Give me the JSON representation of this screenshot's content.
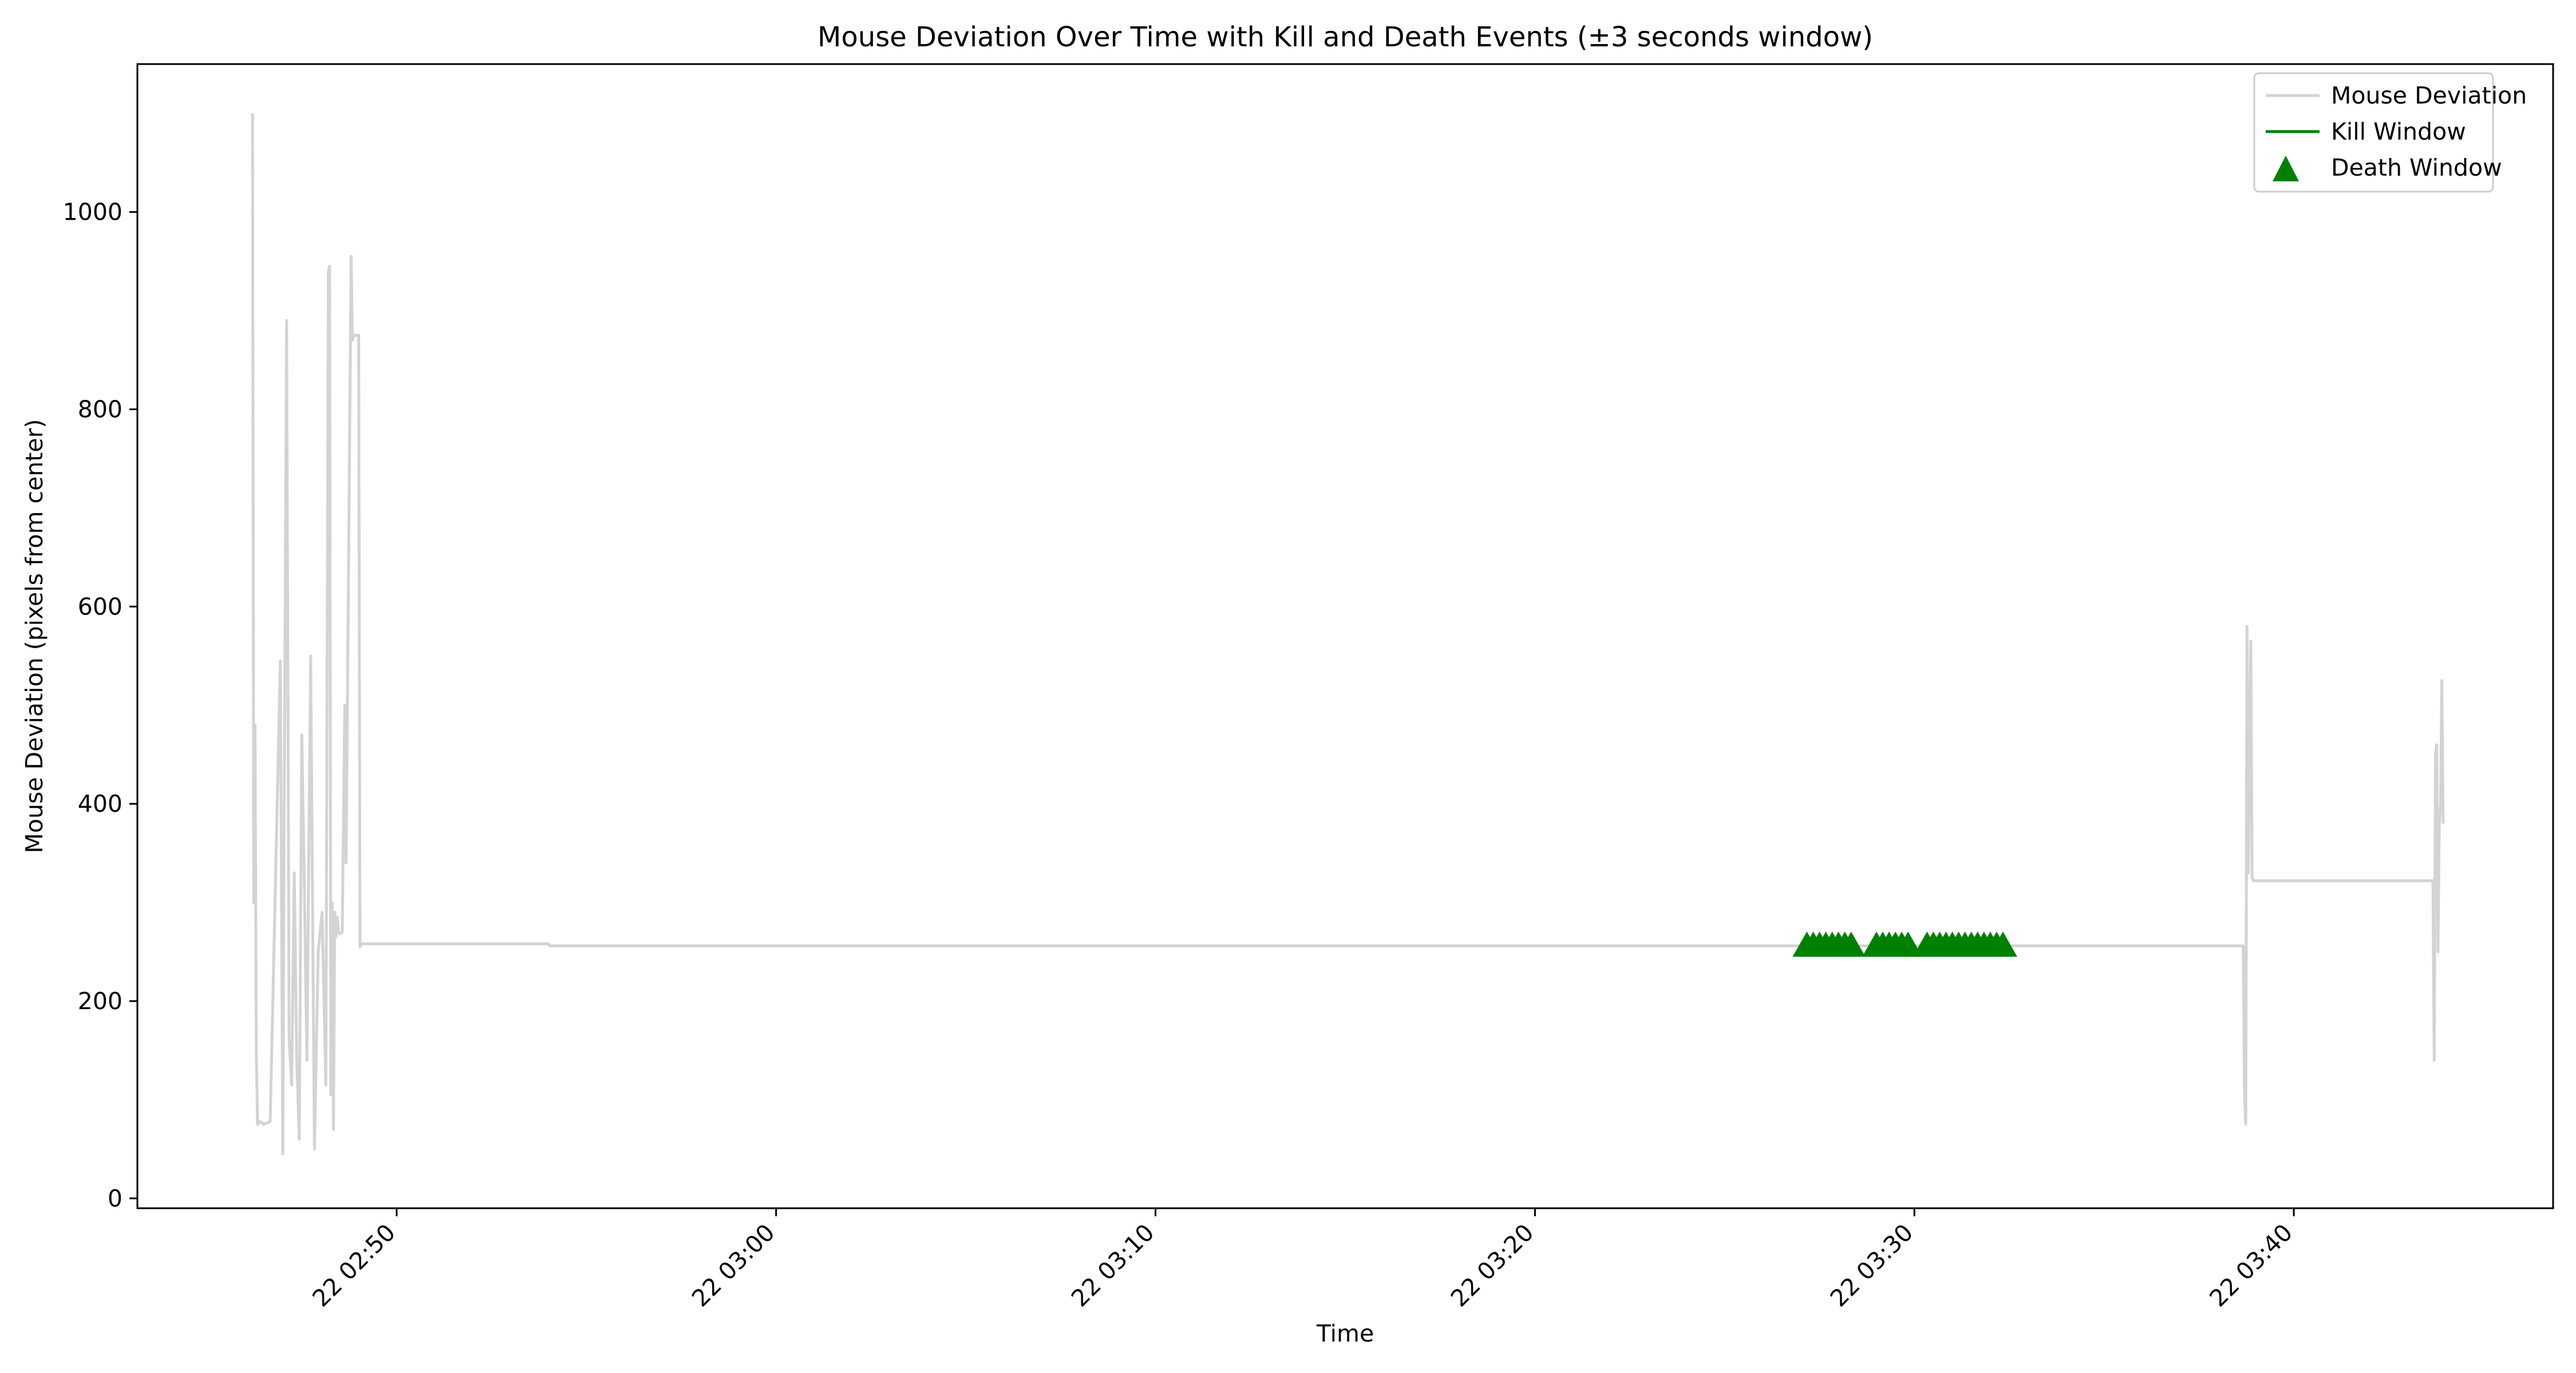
{
  "chart_data": {
    "type": "line",
    "title": "Mouse Deviation Over Time with Kill and Death Events (±3 seconds window)",
    "xlabel": "Time",
    "ylabel": "Mouse Deviation (pixels from center)",
    "xlim": [
      "22 02:43:10",
      "22 03:46:50"
    ],
    "ylim": [
      -10,
      1150
    ],
    "x_ticks": [
      "22 02:50",
      "22 03:00",
      "22 03:10",
      "22 03:20",
      "22 03:30",
      "22 03:40"
    ],
    "y_ticks": [
      0,
      200,
      400,
      600,
      800,
      1000
    ],
    "grid": false,
    "legend_position": "top-right",
    "legend": [
      {
        "label": "Mouse Deviation",
        "marker": "line",
        "color": "#d3d3d3"
      },
      {
        "label": "Kill Window",
        "marker": "line",
        "color": "#008000"
      },
      {
        "label": "Death Window",
        "marker": "triangle",
        "color": "#008000"
      }
    ],
    "colors": {
      "deviation": "#d3d3d3",
      "kill": "#008000",
      "death": "#008000"
    },
    "series": [
      {
        "name": "Mouse Deviation",
        "style": "line",
        "color": "#d3d3d3",
        "x": [
          "22 02:46:12",
          "22 02:46:14",
          "22 02:46:16",
          "22 02:46:18",
          "22 02:46:20",
          "22 02:46:24",
          "22 02:46:30",
          "22 02:46:40",
          "22 02:46:56",
          "22 02:47:00",
          "22 02:47:02",
          "22 02:47:06",
          "22 02:47:10",
          "22 02:47:14",
          "22 02:47:18",
          "22 02:47:22",
          "22 02:47:26",
          "22 02:47:30",
          "22 02:47:34",
          "22 02:47:38",
          "22 02:47:44",
          "22 02:47:50",
          "22 02:47:56",
          "22 02:48:02",
          "22 02:48:08",
          "22 02:48:12",
          "22 02:48:14",
          "22 02:48:16",
          "22 02:48:18",
          "22 02:48:20",
          "22 02:48:22",
          "22 02:48:24",
          "22 02:48:26",
          "22 02:48:28",
          "22 02:48:30",
          "22 02:48:34",
          "22 02:48:38",
          "22 02:48:40",
          "22 02:48:48",
          "22 02:48:50",
          "22 02:48:52",
          "22 02:48:56",
          "22 02:49:00",
          "22 02:49:02",
          "22 02:49:04",
          "22 02:54:00",
          "22 02:54:02",
          "22 02:54:10",
          "22 03:38:40",
          "22 03:38:42",
          "22 03:38:44",
          "22 03:38:46",
          "22 03:38:48",
          "22 03:38:52",
          "22 03:38:54",
          "22 03:38:56",
          "22 03:39:00",
          "22 03:43:40",
          "22 03:43:42",
          "22 03:43:44",
          "22 03:43:46",
          "22 03:43:48",
          "22 03:43:50",
          "22 03:43:52",
          "22 03:43:54",
          "22 03:43:56"
        ],
        "y": [
          1100,
          300,
          480,
          150,
          75,
          78,
          75,
          78,
          545,
          45,
          380,
          890,
          160,
          115,
          330,
          140,
          60,
          470,
          320,
          140,
          550,
          50,
          250,
          290,
          115,
          940,
          945,
          105,
          300,
          70,
          290,
          265,
          285,
          270,
          268,
          270,
          500,
          340,
          955,
          870,
          875,
          875,
          875,
          255,
          258,
          258,
          256,
          256,
          256,
          105,
          75,
          580,
          330,
          565,
          325,
          322,
          322,
          322,
          140,
          450,
          460,
          250,
          380,
          400,
          525,
          380
        ]
      },
      {
        "name": "Death Window",
        "style": "triangle",
        "color": "#008000",
        "x": [
          "22 03:27:10",
          "22 03:27:20",
          "22 03:27:30",
          "22 03:27:40",
          "22 03:27:50",
          "22 03:28:00",
          "22 03:28:10",
          "22 03:28:20",
          "22 03:29:00",
          "22 03:29:10",
          "22 03:29:20",
          "22 03:29:30",
          "22 03:29:40",
          "22 03:29:50",
          "22 03:30:20",
          "22 03:30:30",
          "22 03:30:40",
          "22 03:30:50",
          "22 03:31:00",
          "22 03:31:10",
          "22 03:31:20",
          "22 03:31:30",
          "22 03:31:40",
          "22 03:31:50",
          "22 03:32:00",
          "22 03:32:10",
          "22 03:32:20"
        ],
        "y": [
          256,
          256,
          256,
          256,
          256,
          256,
          256,
          256,
          256,
          256,
          256,
          256,
          256,
          256,
          256,
          256,
          256,
          256,
          256,
          256,
          256,
          256,
          256,
          256,
          256,
          256,
          256
        ]
      }
    ]
  }
}
